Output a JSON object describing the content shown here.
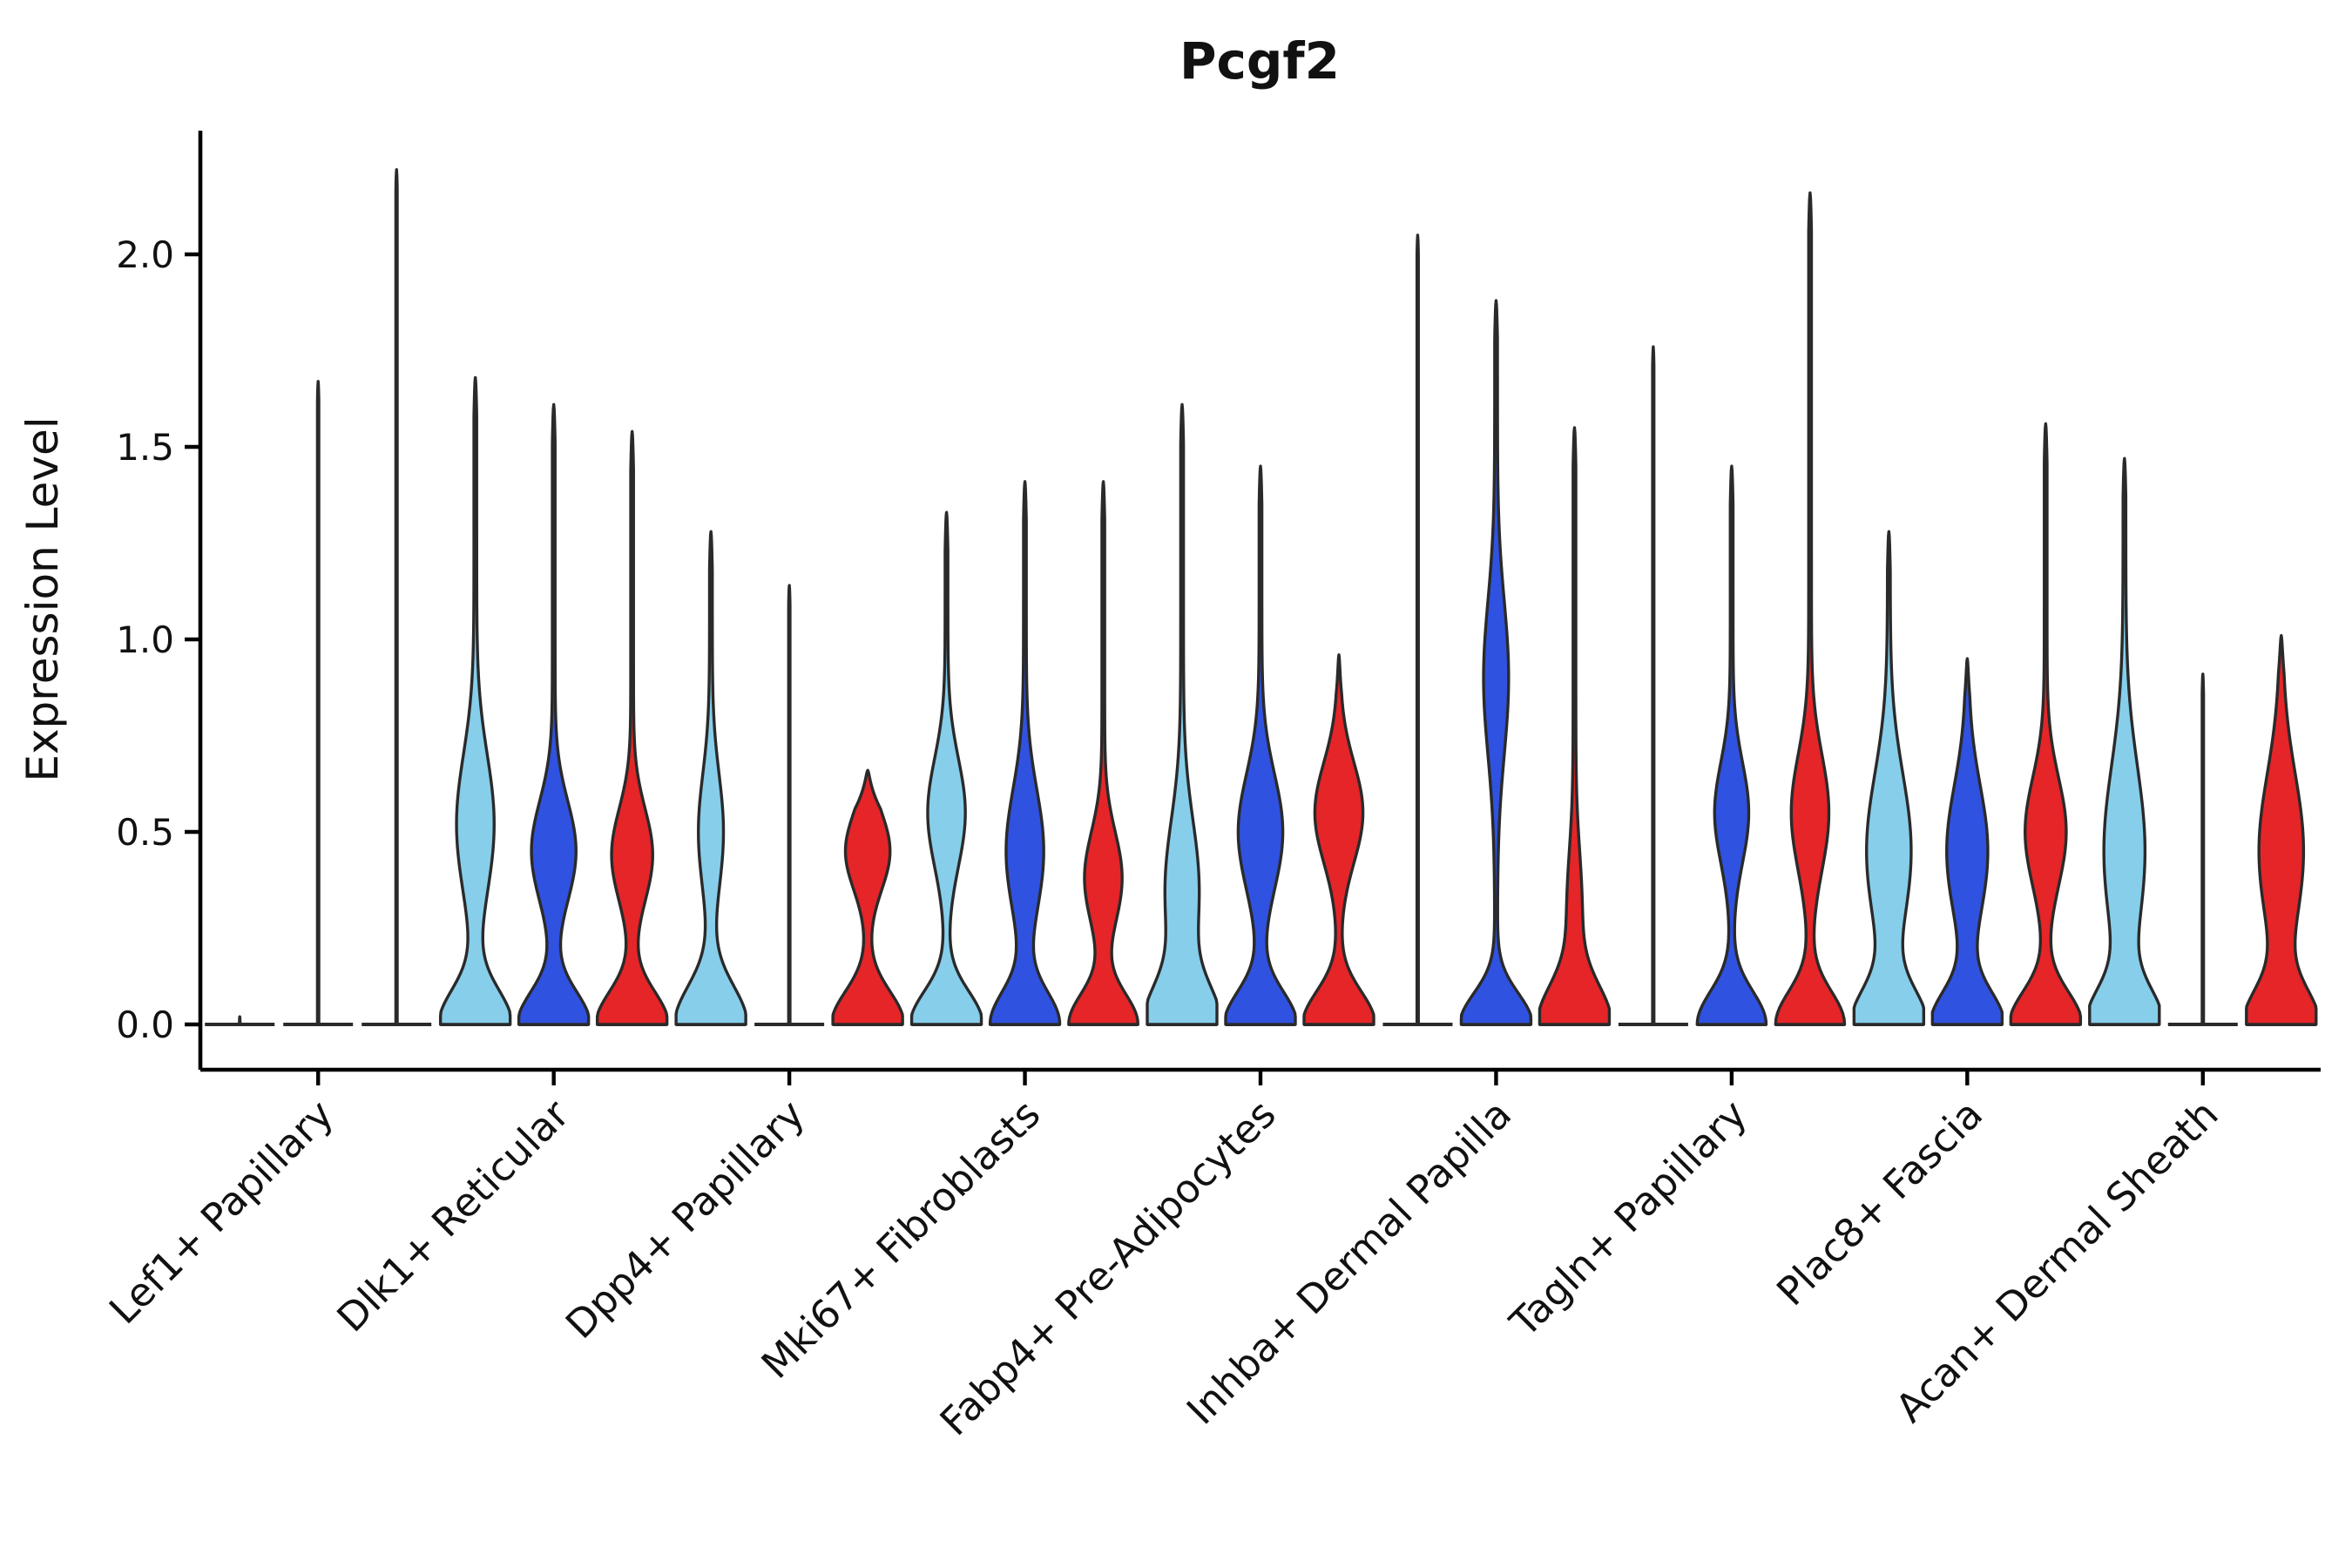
{
  "chart_data": {
    "type": "violin",
    "title": "Pcgf2",
    "ylabel": "Expression Level",
    "xlabel": "",
    "yticks": [
      0.0,
      0.5,
      1.0,
      1.5,
      2.0
    ],
    "ylim": [
      -0.12,
      2.32
    ],
    "legend": "none",
    "grid": false,
    "palette": {
      "skyblue": "#87CEEB",
      "blue": "#3052E0",
      "red": "#E52528"
    },
    "edge_color": "#2A2A2A",
    "groups": [
      {
        "category": "Lef1+ Papillary",
        "violins": [
          {
            "color": "skyblue",
            "flat": true,
            "max": 0.02
          },
          {
            "color": "blue",
            "flat": true,
            "max": 1.67
          },
          {
            "color": "red",
            "flat": true,
            "max": 2.22
          }
        ]
      },
      {
        "category": "Dlk1+ Reticular",
        "violins": [
          {
            "color": "skyblue",
            "max": 1.68,
            "base": 1.0,
            "base_sigma": 0.09,
            "bulges": [
              {
                "center": 0.52,
                "sigma": 0.18,
                "weight": 0.5
              }
            ]
          },
          {
            "color": "blue",
            "max": 1.61,
            "base": 1.0,
            "base_sigma": 0.085,
            "bulges": [
              {
                "center": 0.45,
                "sigma": 0.13,
                "weight": 0.6
              }
            ]
          },
          {
            "color": "red",
            "max": 1.54,
            "base": 1.0,
            "base_sigma": 0.085,
            "bulges": [
              {
                "center": 0.44,
                "sigma": 0.12,
                "weight": 0.55
              }
            ]
          }
        ]
      },
      {
        "category": "Dpp4+ Papillary",
        "violins": [
          {
            "color": "skyblue",
            "max": 1.28,
            "base": 1.0,
            "base_sigma": 0.1,
            "bulges": [
              {
                "center": 0.5,
                "sigma": 0.15,
                "weight": 0.32
              }
            ]
          },
          {
            "color": "blue",
            "flat": true,
            "max": 1.14
          },
          {
            "color": "red",
            "max": 0.66,
            "base": 1.0,
            "base_sigma": 0.085,
            "bulges": [
              {
                "center": 0.45,
                "sigma": 0.1,
                "weight": 0.6
              }
            ]
          }
        ]
      },
      {
        "category": "Mki67+ Fibroblasts",
        "violins": [
          {
            "color": "skyblue",
            "max": 1.33,
            "base": 1.0,
            "base_sigma": 0.085,
            "bulges": [
              {
                "center": 0.55,
                "sigma": 0.14,
                "weight": 0.5
              }
            ]
          },
          {
            "color": "blue",
            "max": 1.41,
            "base": 0.95,
            "base_sigma": 0.085,
            "bulges": [
              {
                "center": 0.45,
                "sigma": 0.16,
                "weight": 0.5
              }
            ]
          },
          {
            "color": "red",
            "max": 1.41,
            "base": 0.95,
            "base_sigma": 0.08,
            "bulges": [
              {
                "center": 0.38,
                "sigma": 0.12,
                "weight": 0.5
              }
            ]
          }
        ]
      },
      {
        "category": "Fabp4+ Pre-Adipocytes",
        "violins": [
          {
            "color": "skyblue",
            "max": 1.61,
            "base": 1.0,
            "base_sigma": 0.1,
            "bulges": [
              {
                "center": 0.35,
                "sigma": 0.18,
                "weight": 0.45
              }
            ]
          },
          {
            "color": "blue",
            "max": 1.45,
            "base": 1.0,
            "base_sigma": 0.085,
            "bulges": [
              {
                "center": 0.5,
                "sigma": 0.15,
                "weight": 0.6
              }
            ]
          },
          {
            "color": "red",
            "max": 0.96,
            "base": 1.0,
            "base_sigma": 0.085,
            "bulges": [
              {
                "center": 0.55,
                "sigma": 0.13,
                "weight": 0.65
              }
            ]
          }
        ]
      },
      {
        "category": "Inhba+ Dermal Papilla",
        "violins": [
          {
            "color": "skyblue",
            "flat": true,
            "max": 2.05
          },
          {
            "color": "blue",
            "max": 1.88,
            "base": 1.0,
            "base_sigma": 0.08,
            "bulges": [
              {
                "center": 0.9,
                "sigma": 0.2,
                "weight": 0.32
              }
            ]
          },
          {
            "color": "red",
            "max": 1.55,
            "base": 1.0,
            "base_sigma": 0.1,
            "bulges": [
              {
                "center": 0.3,
                "sigma": 0.15,
                "weight": 0.18
              }
            ]
          }
        ]
      },
      {
        "category": "Tagln+ Papillary",
        "violins": [
          {
            "color": "skyblue",
            "flat": true,
            "max": 1.76
          },
          {
            "color": "blue",
            "max": 1.45,
            "base": 0.95,
            "base_sigma": 0.085,
            "bulges": [
              {
                "center": 0.55,
                "sigma": 0.13,
                "weight": 0.45
              }
            ]
          },
          {
            "color": "red",
            "max": 2.16,
            "base": 0.95,
            "base_sigma": 0.085,
            "bulges": [
              {
                "center": 0.55,
                "sigma": 0.15,
                "weight": 0.5
              }
            ]
          }
        ]
      },
      {
        "category": "Plac8+ Fascia",
        "violins": [
          {
            "color": "skyblue",
            "max": 1.28,
            "base": 1.0,
            "base_sigma": 0.09,
            "bulges": [
              {
                "center": 0.45,
                "sigma": 0.2,
                "weight": 0.6
              }
            ]
          },
          {
            "color": "blue",
            "max": 0.95,
            "base": 1.0,
            "base_sigma": 0.085,
            "bulges": [
              {
                "center": 0.45,
                "sigma": 0.17,
                "weight": 0.55
              }
            ]
          },
          {
            "color": "red",
            "max": 1.56,
            "base": 1.0,
            "base_sigma": 0.085,
            "bulges": [
              {
                "center": 0.5,
                "sigma": 0.14,
                "weight": 0.55
              }
            ]
          }
        ]
      },
      {
        "category": "Acan+ Dermal Sheath",
        "violins": [
          {
            "color": "skyblue",
            "max": 1.47,
            "base": 1.0,
            "base_sigma": 0.09,
            "bulges": [
              {
                "center": 0.45,
                "sigma": 0.22,
                "weight": 0.55
              }
            ]
          },
          {
            "color": "blue",
            "flat": true,
            "max": 0.91
          },
          {
            "color": "red",
            "max": 1.01,
            "base": 1.0,
            "base_sigma": 0.09,
            "bulges": [
              {
                "center": 0.45,
                "sigma": 0.2,
                "weight": 0.6
              }
            ]
          }
        ]
      }
    ]
  }
}
